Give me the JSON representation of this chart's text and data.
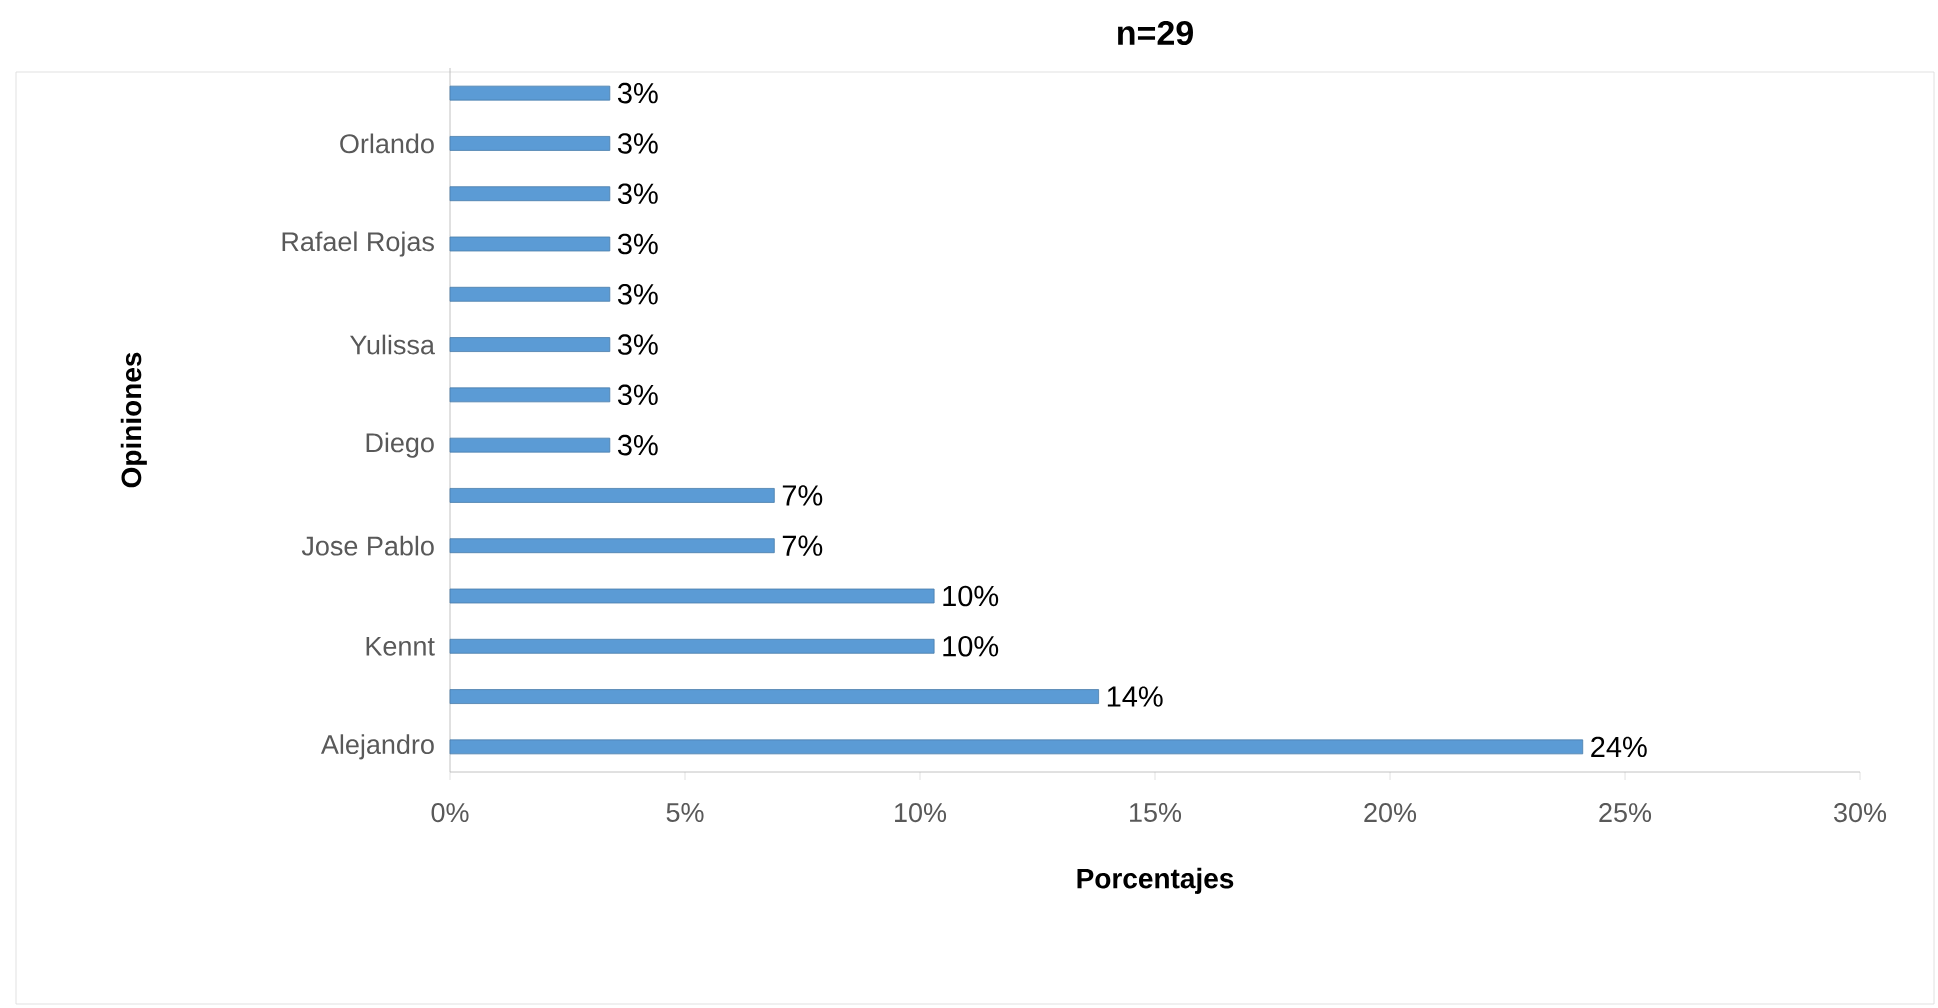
{
  "chart_data": {
    "type": "bar",
    "orientation": "horizontal",
    "title": "n=29",
    "xlabel": "Porcentajes",
    "ylabel": "Opiniones",
    "categories": [
      null,
      "Orlando",
      null,
      "Rafael Rojas",
      null,
      "Yulissa",
      null,
      "Diego",
      null,
      "Jose Pablo",
      null,
      "Kennt",
      null,
      "Alejandro"
    ],
    "values": [
      3.4,
      3.4,
      3.4,
      3.4,
      3.4,
      3.4,
      3.4,
      3.4,
      6.9,
      6.9,
      10.3,
      10.3,
      13.8,
      24.1
    ],
    "value_labels": [
      "3%",
      "3%",
      "3%",
      "3%",
      "3%",
      "3%",
      "3%",
      "3%",
      "7%",
      "7%",
      "10%",
      "10%",
      "14%",
      "24%"
    ],
    "color": "#5b9bd5",
    "xlim": [
      0,
      30
    ],
    "xticks": [
      {
        "value": 0,
        "label": "0%"
      },
      {
        "value": 5,
        "label": "5%"
      },
      {
        "value": 10,
        "label": "10%"
      },
      {
        "value": 15,
        "label": "15%"
      },
      {
        "value": 20,
        "label": "20%"
      },
      {
        "value": 25,
        "label": "25%"
      },
      {
        "value": 30,
        "label": "30%"
      }
    ],
    "grid": false
  }
}
